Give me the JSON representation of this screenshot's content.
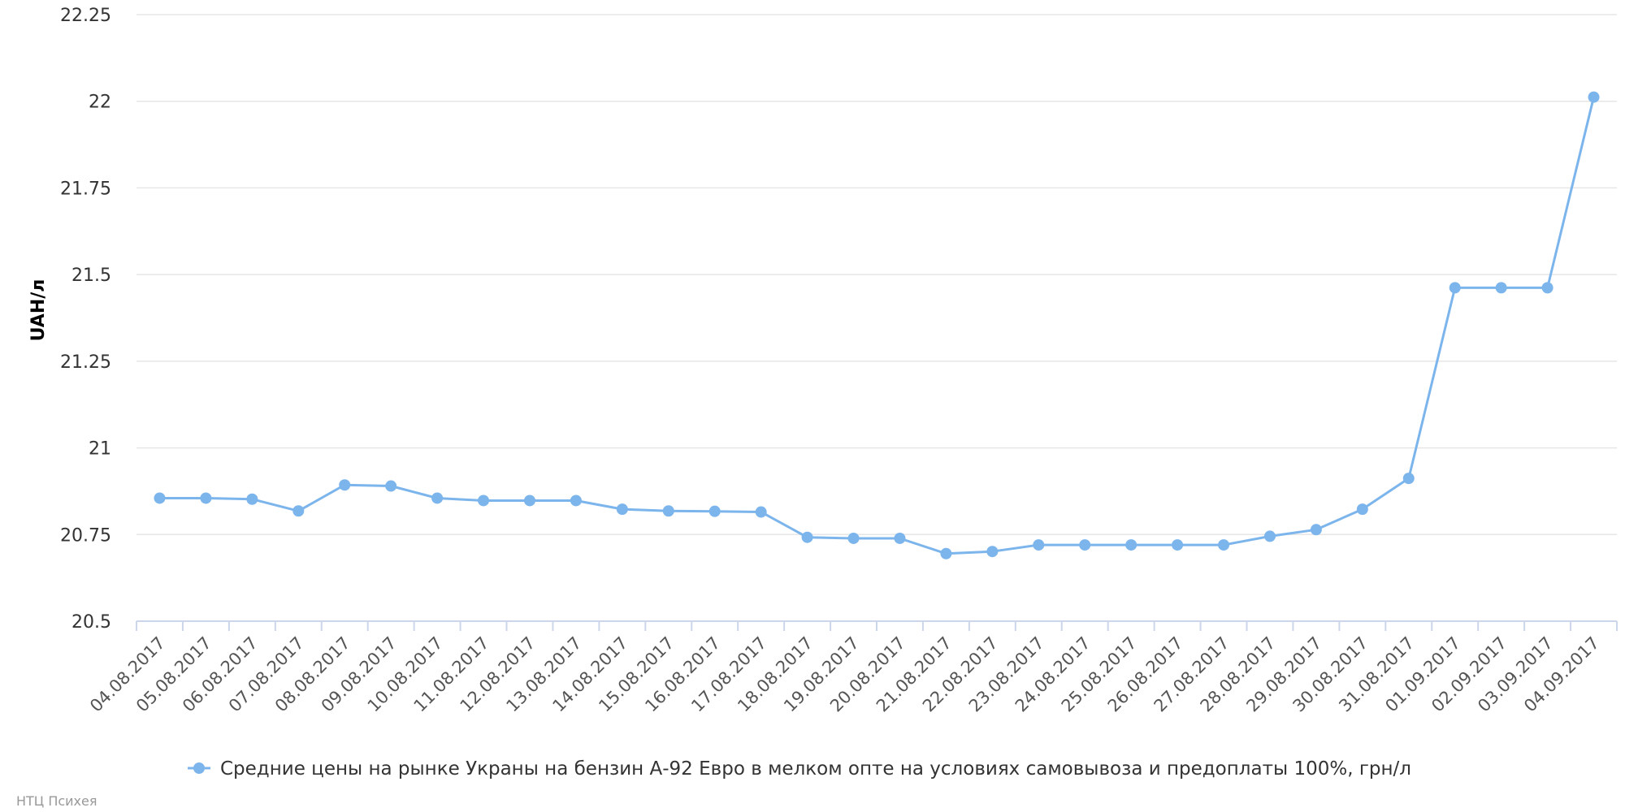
{
  "chart_data": {
    "type": "line",
    "ylabel": "UAH/л",
    "ylim": [
      20.5,
      22.25
    ],
    "yticks": [
      "20.5",
      "20.75",
      "21",
      "21.25",
      "21.5",
      "21.75",
      "22",
      "22.25"
    ],
    "grid": true,
    "legend_position": "bottom",
    "credit": "НТЦ Психея",
    "x": [
      "04.08.2017",
      "05.08.2017",
      "06.08.2017",
      "07.08.2017",
      "08.08.2017",
      "09.08.2017",
      "10.08.2017",
      "11.08.2017",
      "12.08.2017",
      "13.08.2017",
      "14.08.2017",
      "15.08.2017",
      "16.08.2017",
      "17.08.2017",
      "18.08.2017",
      "19.08.2017",
      "20.08.2017",
      "21.08.2017",
      "22.08.2017",
      "23.08.2017",
      "24.08.2017",
      "25.08.2017",
      "26.08.2017",
      "27.08.2017",
      "28.08.2017",
      "29.08.2017",
      "30.08.2017",
      "31.08.2017",
      "01.09.2017",
      "02.09.2017",
      "03.09.2017",
      "04.09.2017"
    ],
    "series": [
      {
        "name": "Средние цены на рынке Украны на бензин А-92 Евро в мелком опте на условиях самовывоза и предоплаты 100%, грн/л",
        "color": "#7cb5ec",
        "values": [
          20.855,
          20.855,
          20.852,
          20.818,
          20.893,
          20.89,
          20.855,
          20.848,
          20.848,
          20.848,
          20.823,
          20.818,
          20.817,
          20.815,
          20.742,
          20.739,
          20.739,
          20.695,
          20.701,
          20.72,
          20.72,
          20.72,
          20.72,
          20.72,
          20.745,
          20.764,
          20.823,
          20.912,
          21.462,
          21.462,
          21.462,
          22.012
        ]
      }
    ]
  }
}
